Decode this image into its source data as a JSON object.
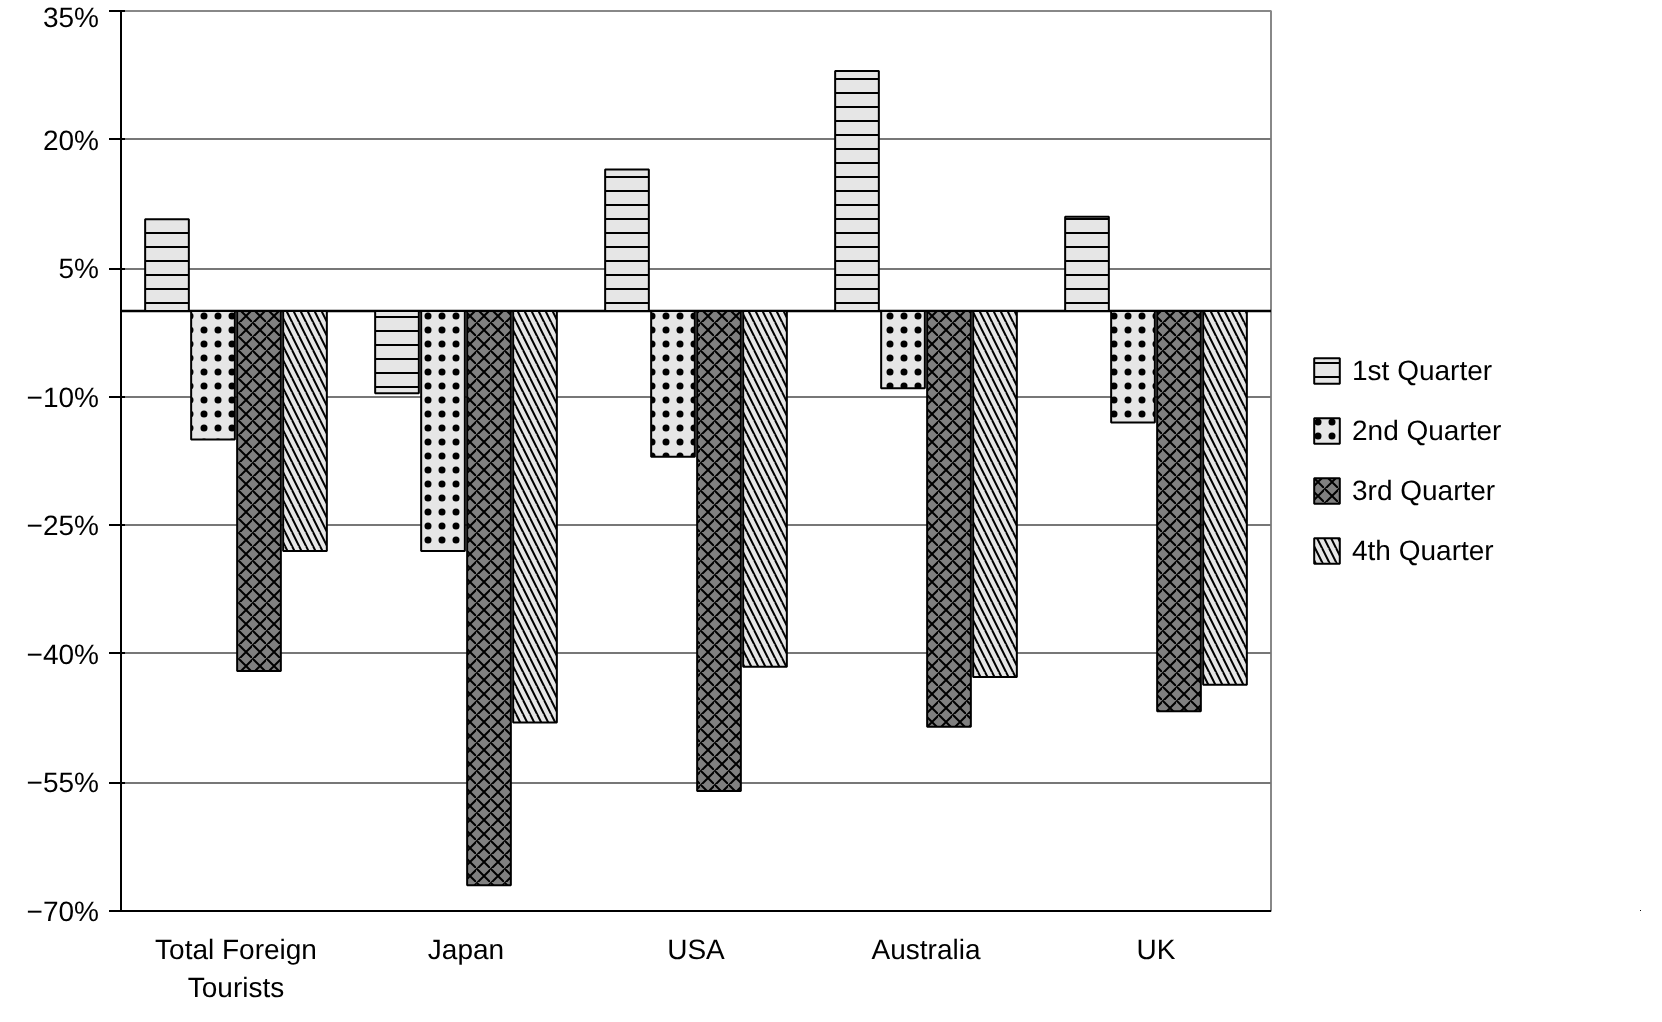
{
  "chart_data": {
    "type": "bar",
    "categories": [
      "Total Foreign Tourists",
      "Japan",
      "USA",
      "Australia",
      "UK"
    ],
    "series": [
      {
        "name": "1st Quarter",
        "color": "#e6e6e6",
        "values": [
          10.7,
          -9.6,
          16.5,
          28,
          11
        ]
      },
      {
        "name": "2nd Quarter",
        "color": "#e6e6e6",
        "values": [
          -15,
          -28,
          -17,
          -9,
          -13
        ]
      },
      {
        "name": "3rd Quarter",
        "color": "#808080",
        "values": [
          -42,
          -67,
          -56,
          -48.5,
          -46.7
        ]
      },
      {
        "name": "4th Quarter",
        "color": "#e6e6e6",
        "values": [
          -28,
          -48,
          -41.5,
          -42.7,
          -43.6
        ]
      }
    ],
    "ylim": [
      -70,
      35
    ],
    "yticks": [
      {
        "value": 35,
        "label": "35%"
      },
      {
        "value": 20,
        "label": "20%"
      },
      {
        "value": 5,
        "label": "5%"
      },
      {
        "value": -10,
        "label": "−10%"
      },
      {
        "value": -25,
        "label": "−25%"
      },
      {
        "value": -40,
        "label": "−40%"
      },
      {
        "value": -55,
        "label": "−55%"
      },
      {
        "value": -70,
        "label": "−70%"
      }
    ],
    "grid": "y",
    "legend": "right"
  }
}
